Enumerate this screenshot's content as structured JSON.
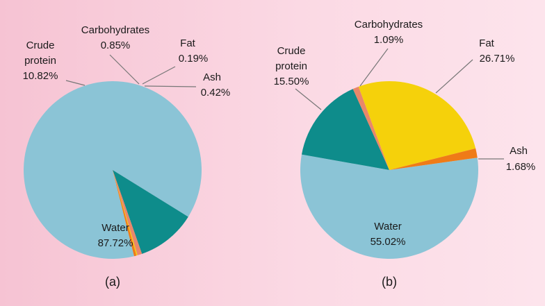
{
  "chart_data": [
    {
      "type": "pie",
      "panel_label": "(a)",
      "slices": [
        {
          "name": "Water",
          "lines": [
            "Water"
          ],
          "value": 87.72,
          "label": "87.72%",
          "color": "#8bc4d6"
        },
        {
          "name": "Crude protein",
          "lines": [
            "Crude",
            "protein"
          ],
          "value": 10.82,
          "label": "10.82%",
          "color": "#0e8c8b"
        },
        {
          "name": "Carbohydrates",
          "lines": [
            "Carbohydrates"
          ],
          "value": 0.85,
          "label": "0.85%",
          "color": "#e9876a"
        },
        {
          "name": "Fat",
          "lines": [
            "Fat"
          ],
          "value": 0.19,
          "label": "0.19%",
          "color": "#f5d10b"
        },
        {
          "name": "Ash",
          "lines": [
            "Ash"
          ],
          "value": 0.42,
          "label": "0.42%",
          "color": "#ef7b17"
        }
      ]
    },
    {
      "type": "pie",
      "panel_label": "(b)",
      "slices": [
        {
          "name": "Water",
          "lines": [
            "Water"
          ],
          "value": 55.02,
          "label": "55.02%",
          "color": "#8bc4d6"
        },
        {
          "name": "Crude protein",
          "lines": [
            "Crude",
            "protein"
          ],
          "value": 15.5,
          "label": "15.50%",
          "color": "#0e8c8b"
        },
        {
          "name": "Carbohydrates",
          "lines": [
            "Carbohydrates"
          ],
          "value": 1.09,
          "label": "1.09%",
          "color": "#e9876a"
        },
        {
          "name": "Fat",
          "lines": [
            "Fat"
          ],
          "value": 26.71,
          "label": "26.71%",
          "color": "#f5d10b"
        },
        {
          "name": "Ash",
          "lines": [
            "Ash"
          ],
          "value": 1.68,
          "label": "1.68%",
          "color": "#ef7b17"
        }
      ]
    }
  ]
}
